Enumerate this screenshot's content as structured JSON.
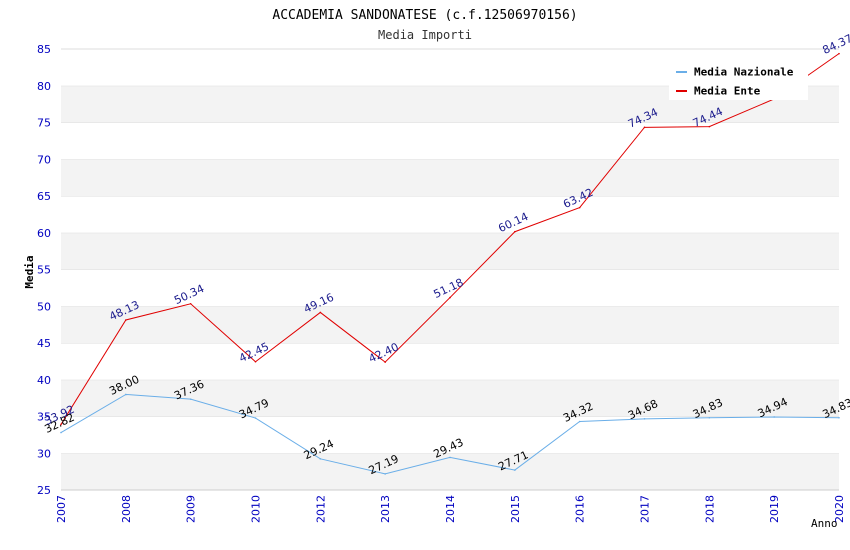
{
  "chart_data": {
    "type": "line",
    "title": "ACCADEMIA SANDONATESE (c.f.12506970156)",
    "subtitle": "Media Importi",
    "ylabel": "Media",
    "xlabel": "Anno",
    "ylim": [
      25,
      85
    ],
    "yticks": [
      25,
      30,
      35,
      40,
      45,
      50,
      55,
      60,
      65,
      70,
      75,
      80,
      85
    ],
    "categories": [
      "2007",
      "2008",
      "2009",
      "2010",
      "2012",
      "2013",
      "2014",
      "2015",
      "2016",
      "2017",
      "2018",
      "2019",
      "2020"
    ],
    "grid": true,
    "legend_position": "top-right",
    "series": [
      {
        "name": "Media Nazionale",
        "color": "#6aaee8",
        "label_color": "#000000",
        "values": [
          32.82,
          38.0,
          37.36,
          34.79,
          29.24,
          27.19,
          29.43,
          27.71,
          34.32,
          34.68,
          34.83,
          34.94,
          34.83
        ],
        "labels": [
          "32.82",
          "38.00",
          "37.36",
          "34.79",
          "29.24",
          "27.19",
          "29.43",
          "27.71",
          "34.32",
          "34.68",
          "34.83",
          "34.94",
          "34.83"
        ]
      },
      {
        "name": "Media Ente",
        "color": "#e00000",
        "label_color": "#1a1a8c",
        "values": [
          33.92,
          48.13,
          50.34,
          42.45,
          49.16,
          42.4,
          51.18,
          60.14,
          63.42,
          74.34,
          74.44,
          78.2,
          84.37
        ],
        "labels": [
          "33.92",
          "48.13",
          "50.34",
          "42.45",
          "49.16",
          "42.40",
          "51.18",
          "60.14",
          "63.42",
          "74.34",
          "74.44",
          "",
          "84.37"
        ]
      }
    ]
  }
}
